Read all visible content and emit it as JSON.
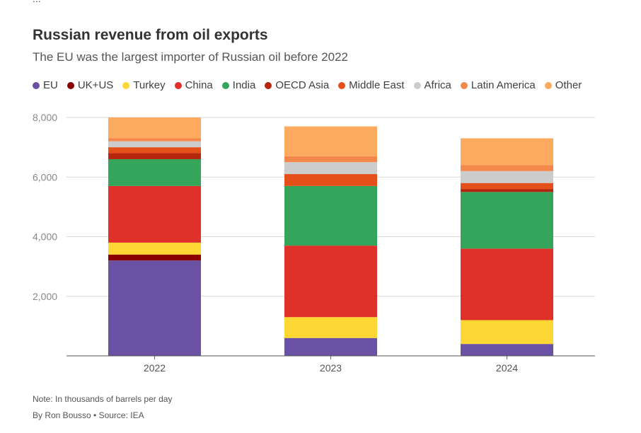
{
  "header_fragment": "...",
  "chart_data": {
    "type": "bar",
    "stacked": true,
    "title": "Russian revenue from oil exports",
    "subtitle": "The EU was the largest importer of Russian oil before 2022",
    "categories": [
      "2022",
      "2023",
      "2024"
    ],
    "ylim": [
      0,
      8000
    ],
    "yticks": [
      2000,
      4000,
      6000,
      8000
    ],
    "ytick_labels": [
      "2,000",
      "4,000",
      "6,000",
      "8,000"
    ],
    "grid": true,
    "legend_position": "top",
    "series": [
      {
        "name": "EU",
        "color": "#6a51a3",
        "values": [
          3200,
          600,
          400
        ]
      },
      {
        "name": "UK+US",
        "color": "#8b0000",
        "values": [
          200,
          0,
          0
        ]
      },
      {
        "name": "Turkey",
        "color": "#fdd835",
        "values": [
          400,
          700,
          800
        ]
      },
      {
        "name": "China",
        "color": "#e0302a",
        "values": [
          1900,
          2400,
          2400
        ]
      },
      {
        "name": "India",
        "color": "#34a55a",
        "values": [
          900,
          2000,
          1900
        ]
      },
      {
        "name": "OECD Asia",
        "color": "#b5260f",
        "values": [
          200,
          0,
          100
        ]
      },
      {
        "name": "Middle East",
        "color": "#e5501a",
        "values": [
          200,
          400,
          200
        ]
      },
      {
        "name": "Africa",
        "color": "#cccccc",
        "values": [
          200,
          400,
          400
        ]
      },
      {
        "name": "Latin America",
        "color": "#f4874b",
        "values": [
          100,
          200,
          200
        ]
      },
      {
        "name": "Other",
        "color": "#fdaa5e",
        "values": [
          700,
          1000,
          900
        ]
      }
    ]
  },
  "footer": {
    "note": "Note: In thousands of barrels per day",
    "credit": "By Ron Bousso • Source: IEA"
  }
}
